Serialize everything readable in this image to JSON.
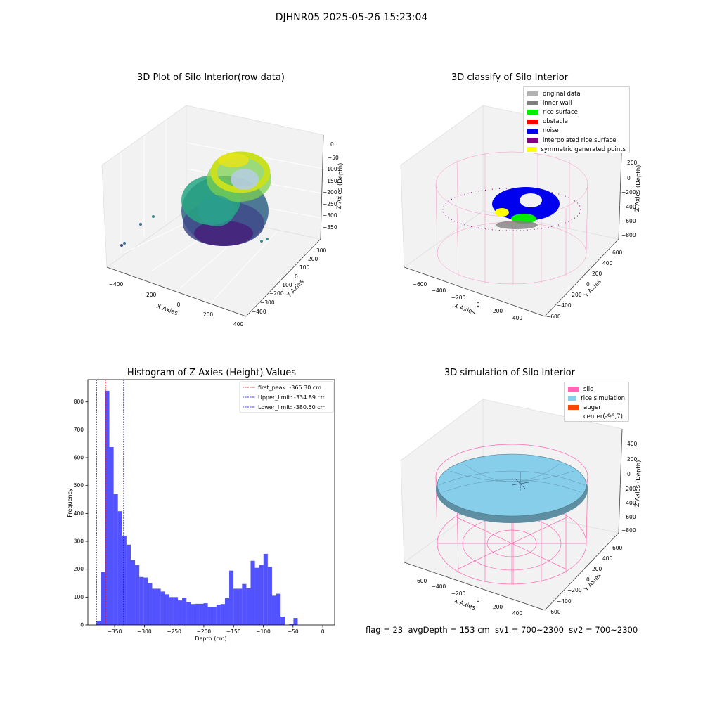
{
  "suptitle": "DJHNR05 2025-05-26 15:23:04",
  "panels": {
    "raw": {
      "title": "3D Plot of Silo Interior(row data)",
      "xlabel": "X Axies",
      "ylabel": "Y Axies",
      "zlabel": "Z Axies (Depth)",
      "xticks": [
        "−400",
        "−200",
        "0",
        "200",
        "400"
      ],
      "yticks": [
        "300",
        "200",
        "100",
        "0",
        "−100",
        "−200",
        "−300",
        "−400"
      ],
      "zticks": [
        "0",
        "−50",
        "−100",
        "−150",
        "−200",
        "−250",
        "−300",
        "−350"
      ]
    },
    "classify": {
      "title": "3D classify of Silo Interior",
      "xlabel": "X Axies",
      "ylabel": "Y Axies",
      "zlabel": "Z Axies (Depth)",
      "xticks": [
        "−600",
        "−400",
        "−200",
        "0",
        "200",
        "400"
      ],
      "yticks": [
        "600",
        "400",
        "200",
        "0",
        "−200",
        "−400",
        "−600"
      ],
      "zticks": [
        "200",
        "0",
        "−200",
        "−400",
        "−600",
        "−800"
      ],
      "legend": [
        {
          "label": "original data",
          "color": "#b3b3b3"
        },
        {
          "label": "inner wall",
          "color": "#808080"
        },
        {
          "label": "rice surface",
          "color": "#00ee00"
        },
        {
          "label": "obstacle",
          "color": "#ff0000"
        },
        {
          "label": "noise",
          "color": "#0000ee"
        },
        {
          "label": "interpolated rice surface",
          "color": "#800080"
        },
        {
          "label": "symmetric generated points",
          "color": "#ffff00"
        }
      ]
    },
    "simulation": {
      "title": "3D simulation of Silo Interior",
      "xlabel": "X Axies",
      "ylabel": "Y Axies",
      "zlabel": "Z Axies (Depth)",
      "xticks": [
        "−600",
        "−400",
        "−200",
        "0",
        "200",
        "400"
      ],
      "yticks": [
        "600",
        "400",
        "200",
        "0",
        "−200",
        "−400",
        "−600"
      ],
      "zticks": [
        "400",
        "200",
        "0",
        "−200",
        "−400",
        "−600",
        "−800"
      ],
      "legend": [
        {
          "label": "silo",
          "color": "#ff69b4"
        },
        {
          "label": "rice simulation",
          "color": "#87ceeb"
        },
        {
          "label": "auger",
          "color": "#ff4500"
        },
        {
          "label": "center(-96,7)",
          "color": "#ffffff"
        }
      ]
    }
  },
  "footer": {
    "text": "flag = 23  avgDepth = 153 cm  sv1 = 700~2300  sv2 = 700~2300"
  },
  "chart_data": [
    {
      "type": "histogram",
      "title": "Histogram of Z-Axies (Height) Values",
      "xlabel": "Depth (cm)",
      "ylabel": "Frequency",
      "xlim": [
        -395,
        20
      ],
      "ylim": [
        0,
        880
      ],
      "bin_start": -380.5,
      "bin_width": 7.2,
      "values": [
        15,
        190,
        840,
        638,
        470,
        408,
        320,
        288,
        233,
        215,
        172,
        170,
        150,
        130,
        130,
        120,
        110,
        100,
        100,
        88,
        98,
        82,
        75,
        76,
        76,
        78,
        65,
        65,
        73,
        75,
        96,
        195,
        130,
        130,
        147,
        132,
        230,
        205,
        215,
        255,
        208,
        105,
        112,
        30,
        0,
        5,
        25
      ],
      "bar_color": "#0000ff",
      "xticks": [
        {
          "v": -350,
          "label": "−350"
        },
        {
          "v": -300,
          "label": "−300"
        },
        {
          "v": -250,
          "label": "−250"
        },
        {
          "v": -200,
          "label": "−200"
        },
        {
          "v": -150,
          "label": "−150"
        },
        {
          "v": -100,
          "label": "−100"
        },
        {
          "v": -50,
          "label": "−50"
        },
        {
          "v": 0,
          "label": "0"
        }
      ],
      "yticks": [
        {
          "v": 0,
          "label": "0"
        },
        {
          "v": 100,
          "label": "100"
        },
        {
          "v": 200,
          "label": "200"
        },
        {
          "v": 300,
          "label": "300"
        },
        {
          "v": 400,
          "label": "400"
        },
        {
          "v": 500,
          "label": "500"
        },
        {
          "v": 600,
          "label": "600"
        },
        {
          "v": 700,
          "label": "700"
        },
        {
          "v": 800,
          "label": "800"
        }
      ],
      "vlines": [
        {
          "x": -365.3,
          "color": "#ff0000",
          "label": "first_peak: -365.30 cm"
        },
        {
          "x": -334.89,
          "color": "#0000ff",
          "label": "Upper_limit: -334.89 cm"
        },
        {
          "x": -380.5,
          "color": "#0000ff",
          "label": "Lower_limit: -380.50 cm"
        }
      ],
      "legend_position": "top-right"
    }
  ]
}
